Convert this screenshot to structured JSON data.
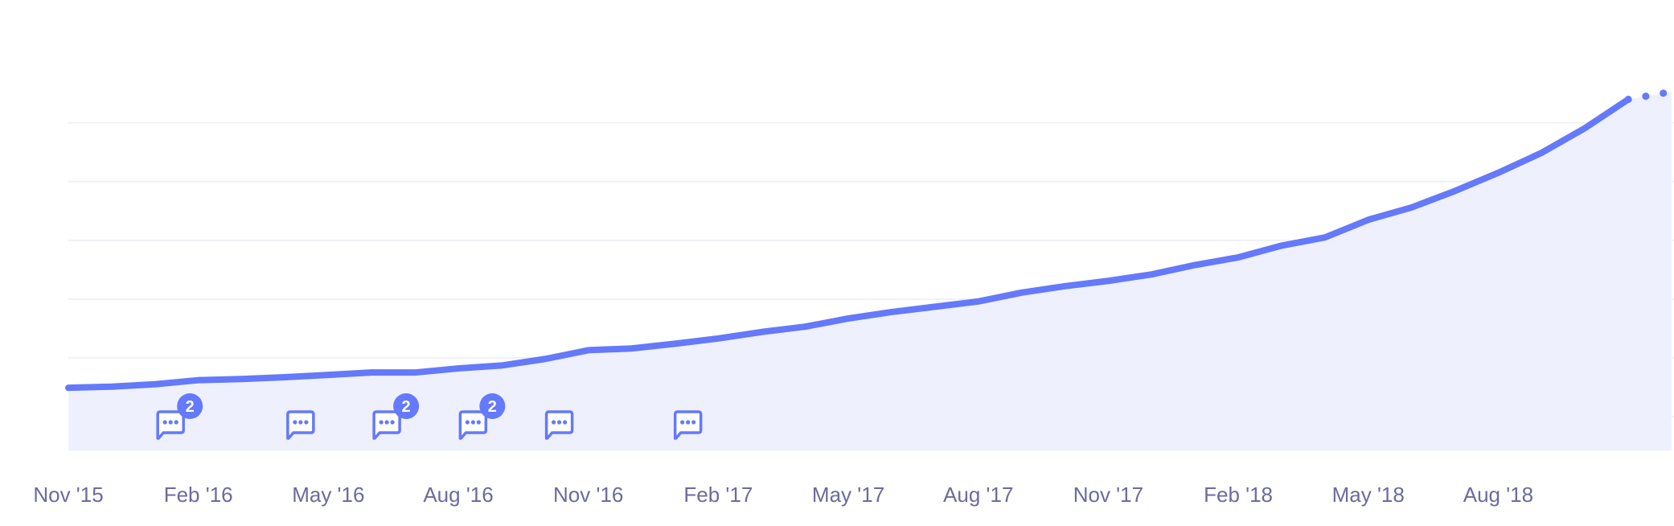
{
  "chart_data": {
    "type": "area",
    "title": "",
    "xlabel": "",
    "ylabel": "",
    "grid": true,
    "ylim": [
      0.42,
      8
    ],
    "colors": {
      "line": "#6579fb",
      "fill": "#eef1fd",
      "grid": "#f0f0f8",
      "tick_text": "#6c6a9e",
      "badge": "#6579fb"
    },
    "x_start": "Nov '15",
    "x_ticks": [
      "Nov '15",
      "Feb '16",
      "May '16",
      "Aug '16",
      "Nov '16",
      "Feb '17",
      "May '17",
      "Aug '17",
      "Nov '17",
      "Feb '18",
      "May '18",
      "Aug '18"
    ],
    "gridlines": [
      1,
      2,
      3,
      4,
      5,
      6
    ],
    "values": [
      1.49,
      1.51,
      1.55,
      1.62,
      1.64,
      1.67,
      1.71,
      1.75,
      1.75,
      1.82,
      1.87,
      1.98,
      2.13,
      2.16,
      2.24,
      2.33,
      2.44,
      2.53,
      2.67,
      2.78,
      2.87,
      2.96,
      3.11,
      3.22,
      3.31,
      3.42,
      3.58,
      3.71,
      3.91,
      4.05,
      4.35,
      4.56,
      4.84,
      5.15,
      5.49,
      5.91,
      6.4
    ],
    "projected_values": [
      6.4,
      6.53
    ],
    "annotations": [
      {
        "month_index": 2.36,
        "count": 2
      },
      {
        "month_index": 5.36,
        "count": 1
      },
      {
        "month_index": 7.35,
        "count": 2
      },
      {
        "month_index": 9.34,
        "count": 2
      },
      {
        "month_index": 11.33,
        "count": 1
      },
      {
        "month_index": 14.3,
        "count": 1
      }
    ]
  }
}
